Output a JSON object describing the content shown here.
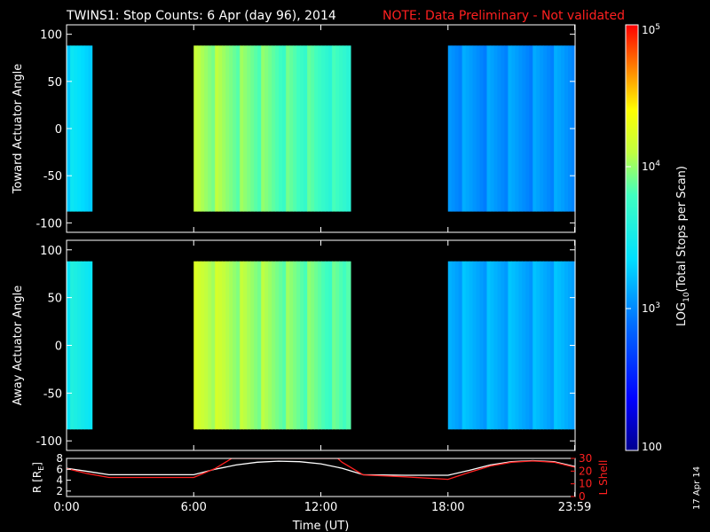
{
  "header": {
    "title": "TWINS1: Stop Counts:  6 Apr (day  96), 2014",
    "note": "NOTE: Data Preliminary - Not validated"
  },
  "colorbar": {
    "label_prefix": "LOG",
    "label_sub": "10",
    "label_suffix": "(Total Stops per Scan)",
    "ticks": [
      {
        "value": 100,
        "label": "100"
      },
      {
        "value": 1000,
        "base": "10",
        "exp": "3"
      },
      {
        "value": 10000,
        "base": "10",
        "exp": "4"
      },
      {
        "value": 100000,
        "base": "10",
        "exp": "5"
      }
    ],
    "range": [
      100,
      100000
    ],
    "scale": "log"
  },
  "footer": {
    "stamp": "17 Apr 14"
  },
  "chart_data": [
    {
      "type": "heatmap",
      "ylabel": "Toward Actuator Angle",
      "xlim": [
        0,
        24
      ],
      "ylim": [
        -110,
        110
      ],
      "yticks": [
        -100,
        -50,
        0,
        50,
        100
      ],
      "data_ylim": [
        -88,
        88
      ],
      "segments": [
        {
          "start": 0.0,
          "end": 1.2,
          "log_level": 3.35
        },
        {
          "start": 6.0,
          "end": 13.2,
          "log_level": 4.05
        },
        {
          "start": 13.2,
          "end": 13.4,
          "log_level": 3.6
        },
        {
          "start": 18.0,
          "end": 24.0,
          "log_level": 3.05
        }
      ]
    },
    {
      "type": "heatmap",
      "ylabel": "Away Actuator Angle",
      "xlim": [
        0,
        24
      ],
      "ylim": [
        -110,
        110
      ],
      "yticks": [
        -100,
        -50,
        0,
        50,
        100
      ],
      "data_ylim": [
        -88,
        88
      ],
      "segments": [
        {
          "start": 0.0,
          "end": 1.2,
          "log_level": 3.5
        },
        {
          "start": 6.0,
          "end": 13.2,
          "log_level": 4.15
        },
        {
          "start": 13.2,
          "end": 13.4,
          "log_level": 3.8
        },
        {
          "start": 18.0,
          "end": 24.0,
          "log_level": 3.15
        }
      ]
    },
    {
      "type": "line",
      "ylabel_left": "R [R",
      "ylabel_left_sub": "E",
      "ylabel_left_end": "]",
      "ylabel_right": "L Shell",
      "ylim_left": [
        1,
        8
      ],
      "ylim_right": [
        0,
        30
      ],
      "yticks_left": [
        2,
        4,
        6,
        8
      ],
      "yticks_right": [
        0,
        10,
        20,
        30
      ],
      "xlim": [
        0,
        24
      ],
      "xticks": [
        {
          "value": 0,
          "label": "0:00"
        },
        {
          "value": 6,
          "label": "6:00"
        },
        {
          "value": 12,
          "label": "12:00"
        },
        {
          "value": 18,
          "label": "18:00"
        },
        {
          "value": 23.98,
          "label": "23:59"
        }
      ],
      "xlabel": "Time (UT)",
      "series": [
        {
          "axis": "left",
          "color": "#ffffff",
          "x": [
            0,
            1,
            2,
            4,
            6,
            7,
            8,
            9,
            10,
            11,
            12,
            13,
            14,
            16,
            18,
            19,
            20,
            21,
            22,
            23,
            24
          ],
          "y": [
            6.2,
            5.6,
            5.0,
            5.0,
            5.0,
            6.0,
            6.8,
            7.3,
            7.5,
            7.4,
            7.0,
            6.2,
            5.0,
            4.9,
            4.9,
            5.8,
            6.8,
            7.4,
            7.6,
            7.4,
            6.5
          ]
        },
        {
          "axis": "right",
          "color": "#ff2020",
          "x": [
            0,
            1,
            2,
            4,
            6,
            7,
            7.8,
            8,
            12.8,
            13,
            14,
            16,
            18,
            19,
            20,
            21,
            22,
            23,
            24
          ],
          "y": [
            22,
            18,
            15,
            15,
            15,
            22,
            30,
            30,
            30,
            27,
            17,
            15.5,
            13.5,
            19,
            24,
            27,
            28,
            27,
            23
          ]
        }
      ]
    }
  ]
}
